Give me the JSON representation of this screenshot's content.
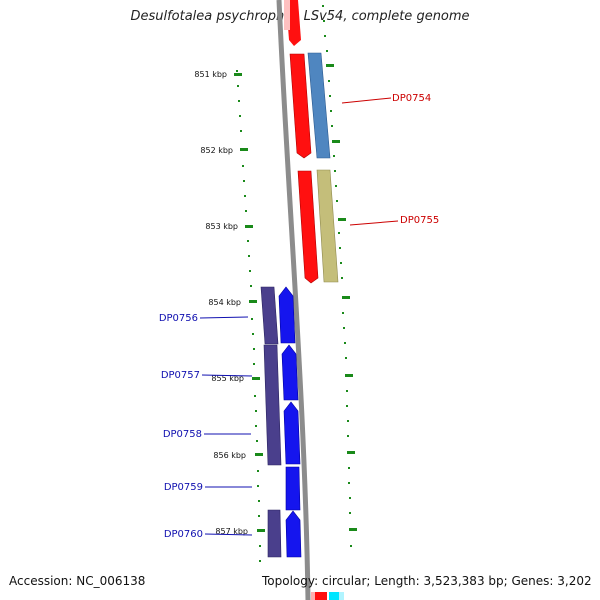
{
  "title": "Desulfotalea psychrophila LSv54, complete genome",
  "accession": "Accession: NC_006138",
  "summary": "Topology: circular; Length: 3,523,383 bp; Genes: 3,202",
  "colors": {
    "backbone": "#8c8c8c",
    "ticks": "#1a8a1a",
    "red_gene": "#ff1010",
    "steelblue_gene": "#4f86c0",
    "khaki_gene": "#c4be7a",
    "blue_gene": "#1515ee",
    "darkpurple_gene": "#4a3f8c",
    "label_red": "#cc0000",
    "label_blue": "#1010b0"
  },
  "scale_labels": [
    "851 kbp",
    "852 kbp",
    "853 kbp",
    "854 kbp",
    "855 kbp",
    "856 kbp",
    "857 kbp"
  ],
  "gene_labels": [
    {
      "text": "DP0754",
      "strand": "plus"
    },
    {
      "text": "DP0755",
      "strand": "plus"
    },
    {
      "text": "DP0756",
      "strand": "minus"
    },
    {
      "text": "DP0757",
      "strand": "minus"
    },
    {
      "text": "DP0758",
      "strand": "minus"
    },
    {
      "text": "DP0759",
      "strand": "minus"
    },
    {
      "text": "DP0760",
      "strand": "minus"
    }
  ]
}
